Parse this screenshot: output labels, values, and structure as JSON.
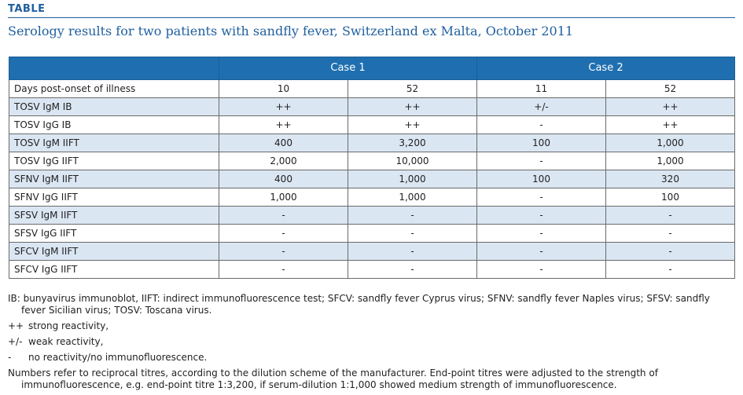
{
  "header": {
    "tag": "TABLE",
    "title": "Serology results for two patients with sandfly fever, Switzerland ex Malta, October 2011"
  },
  "table": {
    "groups": [
      "Case 1",
      "Case 2"
    ],
    "rows": [
      {
        "label": "Days post-onset of illness",
        "values": [
          "10",
          "52",
          "11",
          "52"
        ]
      },
      {
        "label": "TOSV IgM IB",
        "values": [
          "++",
          "++",
          "+/-",
          "++"
        ]
      },
      {
        "label": "TOSV IgG IB",
        "values": [
          "++",
          "++",
          "-",
          "++"
        ]
      },
      {
        "label": "TOSV IgM IIFT",
        "values": [
          "400",
          "3,200",
          "100",
          "1,000"
        ]
      },
      {
        "label": "TOSV IgG IIFT",
        "values": [
          "2,000",
          "10,000",
          "-",
          "1,000"
        ]
      },
      {
        "label": "SFNV IgM IIFT",
        "values": [
          "400",
          "1,000",
          "100",
          "320"
        ]
      },
      {
        "label": "SFNV IgG IIFT",
        "values": [
          "1,000",
          "1,000",
          "-",
          "100"
        ]
      },
      {
        "label": "SFSV IgM IIFT",
        "values": [
          "-",
          "-",
          "-",
          "-"
        ]
      },
      {
        "label": "SFSV IgG IIFT",
        "values": [
          "-",
          "-",
          "-",
          "-"
        ]
      },
      {
        "label": "SFCV IgM IIFT",
        "values": [
          "-",
          "-",
          "-",
          "-"
        ]
      },
      {
        "label": "SFCV IgG IIFT",
        "values": [
          "-",
          "-",
          "-",
          "-"
        ]
      }
    ]
  },
  "notes": {
    "abbreviations": "IB: bunyavirus immunoblot, IIFT: indirect immunofluorescence test; SFCV: sandfly fever Cyprus virus; SFNV: sandfly fever Naples virus; SFSV: sandfly fever Sicilian virus; TOSV: Toscana virus.",
    "legend": [
      {
        "symbol": "++",
        "text": "strong reactivity,"
      },
      {
        "symbol": "+/-",
        "text": "weak reactivity,"
      },
      {
        "symbol": "-",
        "text": "no reactivity/no immunofluorescence."
      }
    ],
    "footnote": "Numbers refer to reciprocal titres, according to the dilution scheme of the manufacturer. End-point titres were adjusted to the strength of immunofluorescence, e.g. end-point titre 1:3,200, if serum-dilution 1:1,000 showed medium strength of immunofluorescence."
  },
  "colors": {
    "accent": "#1f5f9e",
    "header_fill": "#1f6fb0",
    "row_shade": "#dbe6f3"
  }
}
